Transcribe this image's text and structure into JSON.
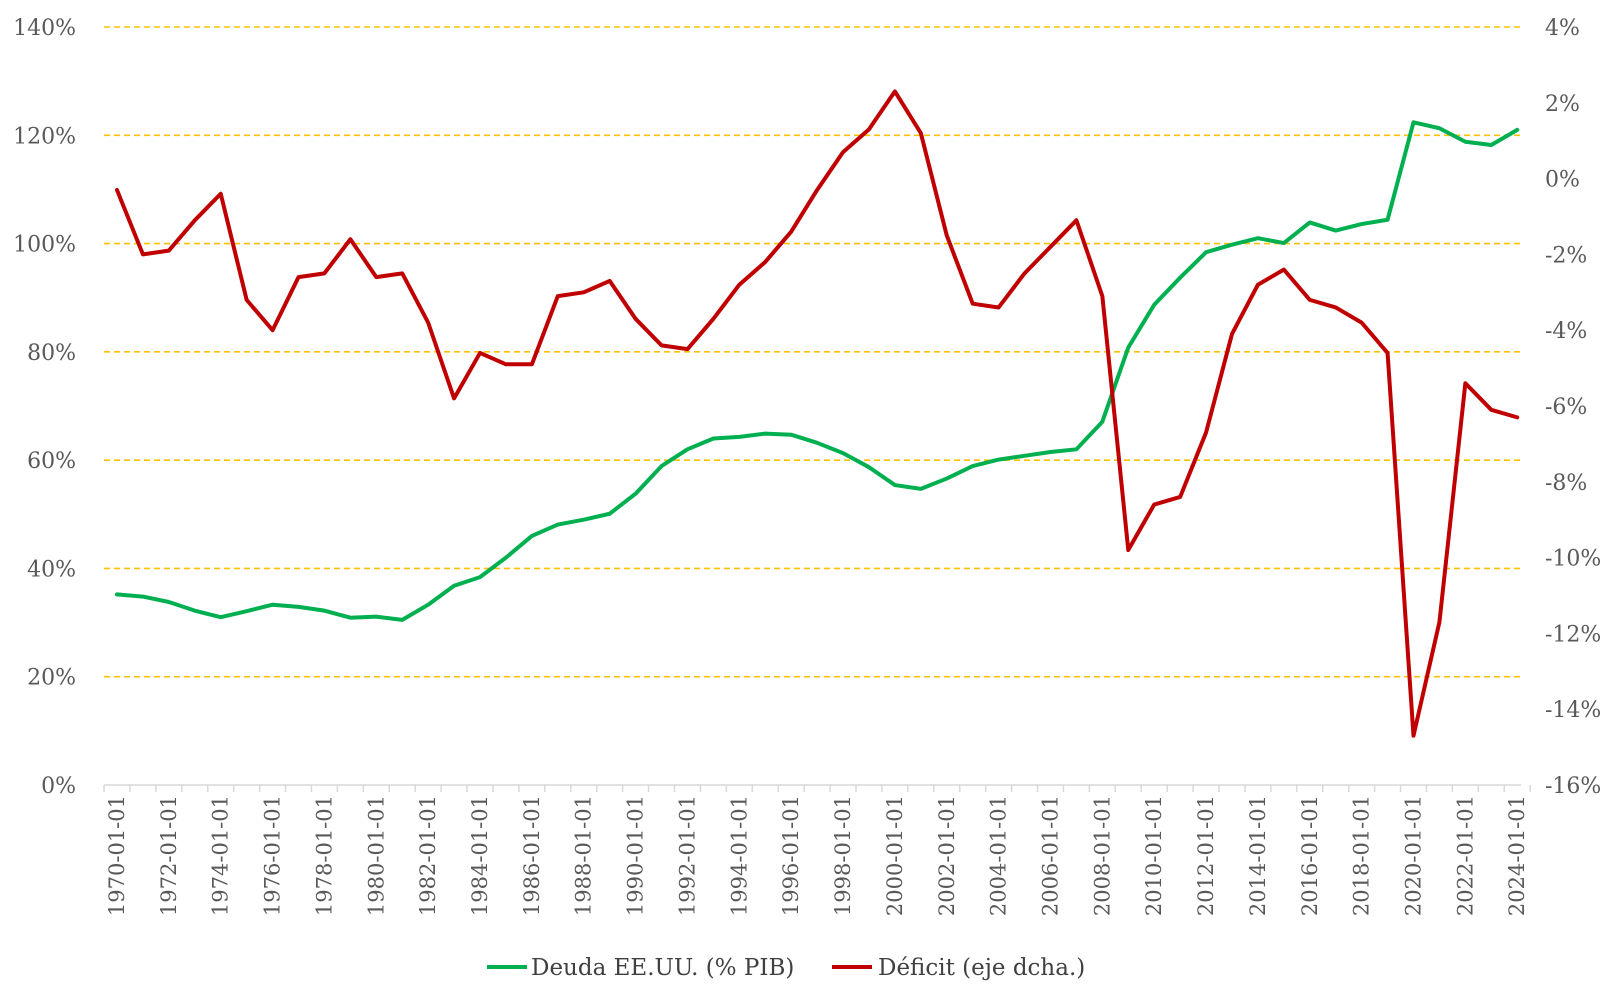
{
  "chart_data": {
    "type": "line",
    "x": [
      "1970-01-01",
      "1971-01-01",
      "1972-01-01",
      "1973-01-01",
      "1974-01-01",
      "1975-01-01",
      "1976-01-01",
      "1977-01-01",
      "1978-01-01",
      "1979-01-01",
      "1980-01-01",
      "1981-01-01",
      "1982-01-01",
      "1983-01-01",
      "1984-01-01",
      "1985-01-01",
      "1986-01-01",
      "1987-01-01",
      "1988-01-01",
      "1989-01-01",
      "1990-01-01",
      "1991-01-01",
      "1992-01-01",
      "1993-01-01",
      "1994-01-01",
      "1995-01-01",
      "1996-01-01",
      "1997-01-01",
      "1998-01-01",
      "1999-01-01",
      "2000-01-01",
      "2001-01-01",
      "2002-01-01",
      "2003-01-01",
      "2004-01-01",
      "2005-01-01",
      "2006-01-01",
      "2007-01-01",
      "2008-01-01",
      "2009-01-01",
      "2010-01-01",
      "2011-01-01",
      "2012-01-01",
      "2013-01-01",
      "2014-01-01",
      "2015-01-01",
      "2016-01-01",
      "2017-01-01",
      "2018-01-01",
      "2019-01-01",
      "2020-01-01",
      "2021-01-01",
      "2022-01-01",
      "2023-01-01",
      "2024-01-01"
    ],
    "x_tick_labels": [
      "1970-01-01",
      "1972-01-01",
      "1974-01-01",
      "1976-01-01",
      "1978-01-01",
      "1980-01-01",
      "1982-01-01",
      "1984-01-01",
      "1986-01-01",
      "1988-01-01",
      "1990-01-01",
      "1992-01-01",
      "1994-01-01",
      "1996-01-01",
      "1998-01-01",
      "2000-01-01",
      "2002-01-01",
      "2004-01-01",
      "2006-01-01",
      "2008-01-01",
      "2010-01-01",
      "2012-01-01",
      "2014-01-01",
      "2016-01-01",
      "2018-01-01",
      "2020-01-01",
      "2022-01-01",
      "2024-01-01"
    ],
    "y_left": {
      "min": 0,
      "max": 140,
      "ticks": [
        0,
        20,
        40,
        60,
        80,
        100,
        120,
        140
      ],
      "tick_labels": [
        "0%",
        "20%",
        "40%",
        "60%",
        "80%",
        "100%",
        "120%",
        "140%"
      ]
    },
    "y_right": {
      "min": -16,
      "max": 4,
      "ticks": [
        -16,
        -14,
        -12,
        -10,
        -8,
        -6,
        -4,
        -2,
        0,
        2,
        4
      ],
      "tick_labels": [
        "-16%",
        "-14%",
        "-12%",
        "-10%",
        "-8%",
        "-6%",
        "-4%",
        "-2%",
        "0%",
        "2%",
        "4%"
      ]
    },
    "grid": true,
    "legend_position": "bottom",
    "series": [
      {
        "name": "Deuda EE.UU. (% PIB)",
        "axis": "left",
        "color": "#00b050",
        "values": [
          35.2,
          34.8,
          33.8,
          32.2,
          31.0,
          32.1,
          33.3,
          32.9,
          32.2,
          30.9,
          31.1,
          30.5,
          33.3,
          36.8,
          38.4,
          42.0,
          46.0,
          48.1,
          49.0,
          50.1,
          53.8,
          58.9,
          62.0,
          64.0,
          64.3,
          64.9,
          64.7,
          63.2,
          61.3,
          58.7,
          55.4,
          54.7,
          56.6,
          58.9,
          60.1,
          60.8,
          61.5,
          62.0,
          67.1,
          80.8,
          88.7,
          93.7,
          98.4,
          99.8,
          101.0,
          100.1,
          103.9,
          102.4,
          103.6,
          104.4,
          122.4,
          121.3,
          118.8,
          118.2,
          121.0
        ]
      },
      {
        "name": "Déficit (eje dcha.)",
        "axis": "right",
        "color": "#c00000",
        "values": [
          -0.3,
          -2.0,
          -1.9,
          -1.1,
          -0.4,
          -3.2,
          -4.0,
          -2.6,
          -2.5,
          -1.6,
          -2.6,
          -2.5,
          -3.8,
          -5.8,
          -4.6,
          -4.9,
          -4.9,
          -3.1,
          -3.0,
          -2.7,
          -3.7,
          -4.4,
          -4.5,
          -3.7,
          -2.8,
          -2.2,
          -1.4,
          -0.3,
          0.7,
          1.3,
          2.3,
          1.2,
          -1.5,
          -3.3,
          -3.4,
          -2.5,
          -1.8,
          -1.1,
          -3.1,
          -9.8,
          -8.6,
          -8.4,
          -6.7,
          -4.1,
          -2.8,
          -2.4,
          -3.2,
          -3.4,
          -3.8,
          -4.6,
          -14.7,
          -11.7,
          -5.4,
          -6.1,
          -6.3
        ]
      }
    ]
  }
}
